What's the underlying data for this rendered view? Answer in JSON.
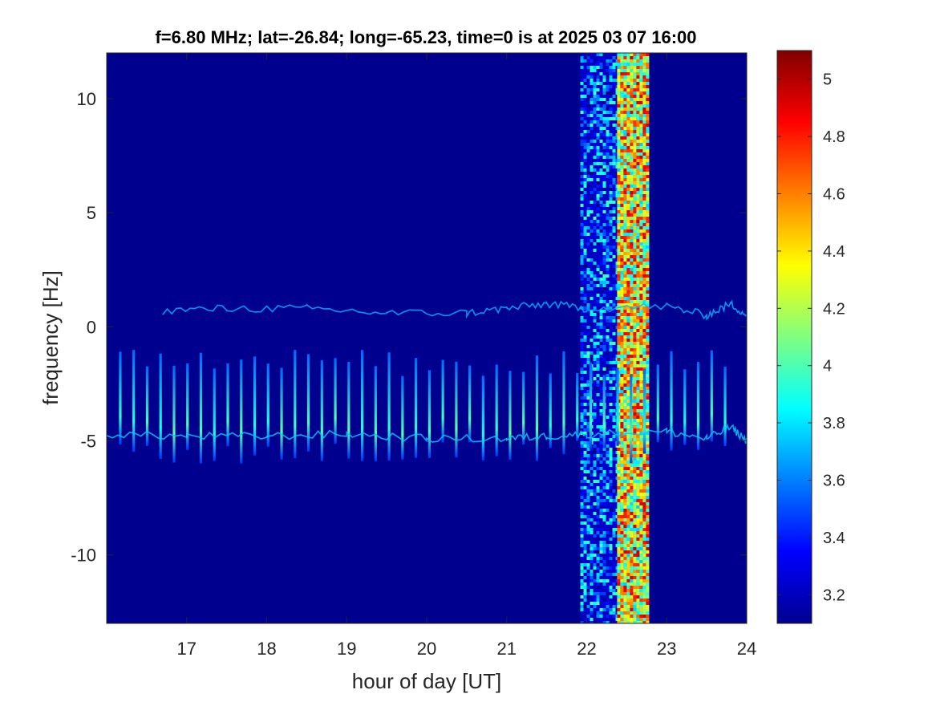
{
  "chart_data": {
    "type": "heatmap",
    "title": "f=6.80 MHz;  lat=-26.84; long=-65.23, time=0 is at 2025 03 07 16:00",
    "xlabel": "hour of day [UT]",
    "ylabel": "frequency [Hz]",
    "xlim": [
      16.0,
      24.0
    ],
    "ylim": [
      -13.0,
      12.0
    ],
    "xticks": [
      17,
      18,
      19,
      20,
      21,
      22,
      23,
      24
    ],
    "xtick_labels": [
      "17",
      "18",
      "19",
      "20",
      "21",
      "22",
      "23",
      "24"
    ],
    "yticks": [
      -10,
      -5,
      0,
      5,
      10
    ],
    "ytick_labels": [
      "-10",
      "-5",
      "0",
      "5",
      "10"
    ],
    "colorbar": {
      "colormap": "jet",
      "range": [
        3.1,
        5.1
      ],
      "ticks": [
        3.2,
        3.4,
        3.6,
        3.8,
        4,
        4.2,
        4.4,
        4.6,
        4.8,
        5
      ],
      "tick_labels": [
        "3.2",
        "3.4",
        "3.6",
        "3.8",
        "4",
        "4.2",
        "4.4",
        "4.6",
        "4.8",
        "5"
      ]
    },
    "background_level": 3.12,
    "features": {
      "periodic_bursts": {
        "start_hour": 16.17,
        "end_hour": 23.85,
        "spacing_hours": 0.168,
        "freq_range_hz": [
          -6.0,
          -1.0
        ],
        "peak_level": 3.95
      },
      "lower_trace_hz": [
        [
          16.0,
          -4.7
        ],
        [
          17.0,
          -4.8
        ],
        [
          18.0,
          -4.8
        ],
        [
          19.0,
          -4.7
        ],
        [
          20.0,
          -4.9
        ],
        [
          21.0,
          -4.9
        ],
        [
          21.5,
          -4.8
        ],
        [
          22.0,
          -4.7
        ],
        [
          23.0,
          -4.6
        ],
        [
          23.5,
          -4.9
        ],
        [
          23.8,
          -4.4
        ],
        [
          24.0,
          -5.0
        ]
      ],
      "upper_trace_hz": [
        [
          16.7,
          0.7
        ],
        [
          17.5,
          0.8
        ],
        [
          18.5,
          0.8
        ],
        [
          19.5,
          0.6
        ],
        [
          20.5,
          0.6
        ],
        [
          21.0,
          0.8
        ],
        [
          21.5,
          1.0
        ],
        [
          22.0,
          0.8
        ],
        [
          23.0,
          0.9
        ],
        [
          23.5,
          0.5
        ],
        [
          23.8,
          1.0
        ],
        [
          24.0,
          0.5
        ]
      ],
      "broadband_noise_bands": [
        {
          "from_hour": 21.92,
          "to_hour": 22.38,
          "level": 3.55
        },
        {
          "from_hour": 22.38,
          "to_hour": 22.75,
          "level": 4.35
        }
      ]
    }
  }
}
